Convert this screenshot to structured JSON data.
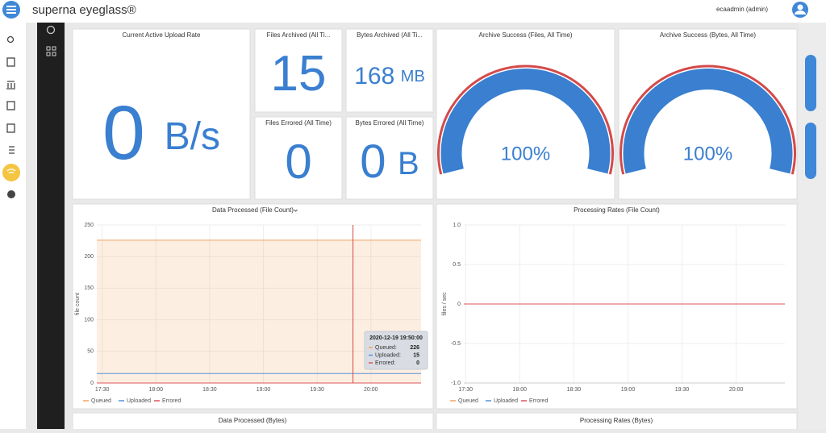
{
  "header": {
    "brand": "superna eyeglass®",
    "user": "ecaadmin (admin)"
  },
  "stats": [
    {
      "title": "Current Active Upload Rate",
      "value": 0,
      "unit": "B/s"
    },
    {
      "title": "Files Archived (All Ti...",
      "value": 15
    },
    {
      "title": "Bytes Archived (All Ti...",
      "value": 168,
      "unit": "MB"
    },
    {
      "title": "Files Errored (All Time)",
      "value": 0
    },
    {
      "title": "Bytes Errored (All Time)",
      "value": 0,
      "unit": "B"
    }
  ],
  "gauges": [
    {
      "title": "Archive Success (Files, All Time)",
      "value": 100,
      "value_label": "100%"
    },
    {
      "title": "Archive Success (Bytes, All Time)",
      "value": 100,
      "value_label": "100%"
    }
  ],
  "chart_data": [
    {
      "type": "line",
      "title": "Data Processed (File Count)",
      "y_label": "file count",
      "x": [
        1047,
        1080,
        1110,
        1140,
        1170,
        1200,
        1228
      ],
      "xlim": [
        1047,
        1228
      ],
      "xticks": [
        {
          "value": 1050,
          "label": "17:30"
        },
        {
          "value": 1080,
          "label": "18:00"
        },
        {
          "value": 1110,
          "label": "18:30"
        },
        {
          "value": 1140,
          "label": "19:00"
        },
        {
          "value": 1170,
          "label": "19:30"
        },
        {
          "value": 1200,
          "label": "20:00"
        }
      ],
      "ylim": [
        0,
        250
      ],
      "yticks": [
        0,
        50,
        100,
        150,
        200,
        250
      ],
      "grid": true,
      "series": [
        {
          "name": "Queued",
          "color": "#f2a25c",
          "fill": true,
          "values": [
            226,
            226,
            226,
            226,
            226,
            226,
            226
          ]
        },
        {
          "name": "Uploaded",
          "color": "#5794d6",
          "values": [
            15,
            15,
            15,
            15,
            15,
            15,
            15
          ]
        },
        {
          "name": "Errored",
          "color": "#e0545a",
          "values": [
            0,
            0,
            0,
            0,
            0,
            0,
            0
          ]
        }
      ],
      "tooltip": {
        "title": "2020-12-19 19:50:00",
        "x": 1190,
        "rows": [
          {
            "name": "Queued:",
            "value": 226
          },
          {
            "name": "Uploaded:",
            "value": 15
          },
          {
            "name": "Errored:",
            "value": 0
          }
        ]
      }
    },
    {
      "type": "line",
      "title": "Processing Rates (File Count)",
      "y_label": "files / sec",
      "x": [
        1049,
        1080,
        1110,
        1140,
        1170,
        1200,
        1227
      ],
      "xlim": [
        1049,
        1227
      ],
      "xticks": [
        {
          "value": 1050,
          "label": "17:30"
        },
        {
          "value": 1080,
          "label": "18:00"
        },
        {
          "value": 1110,
          "label": "18:30"
        },
        {
          "value": 1140,
          "label": "19:00"
        },
        {
          "value": 1170,
          "label": "19:30"
        },
        {
          "value": 1200,
          "label": "20:00"
        }
      ],
      "ylim": [
        -1,
        1
      ],
      "yticks": [
        {
          "value": -1,
          "label": "-1.0"
        },
        {
          "value": -0.5,
          "label": "-0.5"
        },
        0,
        0.5,
        {
          "value": 1,
          "label": "1.0"
        }
      ],
      "grid": true,
      "series": [
        {
          "name": "Queued",
          "color": "#f2a25c",
          "values": [
            0,
            0,
            0,
            0,
            0,
            0,
            0
          ]
        },
        {
          "name": "Uploaded",
          "color": "#5794d6",
          "values": [
            0,
            0,
            0,
            0,
            0,
            0,
            0
          ]
        },
        {
          "name": "Errored",
          "color": "#e0545a",
          "values": [
            0,
            0,
            0,
            0,
            0,
            0,
            0
          ]
        }
      ]
    }
  ],
  "bottom_panels": [
    "Data Processed (Bytes)",
    "Processing Rates (Bytes)"
  ]
}
